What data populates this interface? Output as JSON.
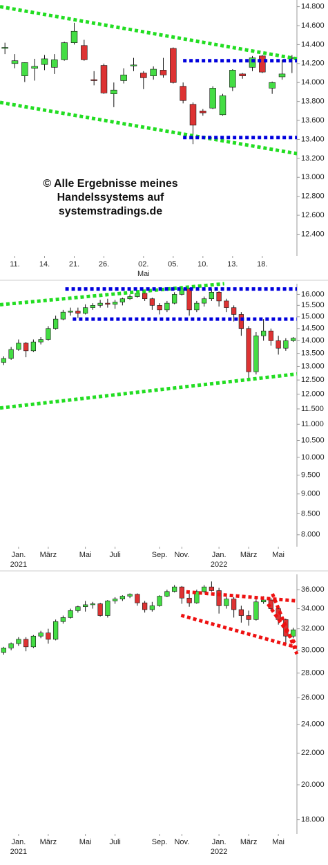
{
  "chart_data": [
    {
      "type": "candlestick",
      "categories": [
        null,
        "11.",
        null,
        null,
        "14.",
        null,
        null,
        "21.",
        null,
        null,
        "26.",
        null,
        null,
        null,
        "02.",
        null,
        null,
        "05.",
        null,
        null,
        "10.",
        null,
        null,
        "13.",
        null,
        null,
        "18.",
        null,
        null,
        null
      ],
      "sublabels": [
        null,
        null,
        null,
        null,
        null,
        null,
        null,
        null,
        null,
        null,
        null,
        null,
        null,
        null,
        "Mai",
        null,
        null,
        null,
        null,
        null,
        null,
        null,
        null,
        null,
        null,
        null,
        null,
        null,
        null,
        null
      ],
      "open": [
        14360,
        14200,
        14070,
        14150,
        14190,
        14160,
        14240,
        14420,
        14390,
        14030,
        14180,
        13880,
        14020,
        14175,
        14100,
        14070,
        14130,
        14360,
        13960,
        13770,
        13700,
        13730,
        13660,
        13950,
        14090,
        14160,
        14280,
        13940,
        14060,
        14255
      ],
      "high": [
        14420,
        14300,
        14213,
        14250,
        14290,
        14300,
        14430,
        14630,
        14450,
        14120,
        14200,
        14000,
        14150,
        14260,
        14120,
        14170,
        14260,
        14370,
        14000,
        13790,
        13720,
        13960,
        13880,
        14140,
        14100,
        14280,
        14290,
        14010,
        14240,
        14290
      ],
      "low": [
        14300,
        14150,
        14005,
        14020,
        14130,
        14090,
        14230,
        14400,
        14230,
        13970,
        13880,
        13740,
        13990,
        14120,
        13930,
        14030,
        14050,
        13990,
        13780,
        13350,
        13650,
        13720,
        13650,
        13910,
        14040,
        14120,
        14100,
        13880,
        14030,
        14100
      ],
      "close": [
        14370,
        14230,
        14210,
        14170,
        14250,
        14240,
        14420,
        14540,
        14240,
        14020,
        13890,
        13920,
        14080,
        14185,
        14050,
        14140,
        14080,
        14000,
        13810,
        13550,
        13680,
        13940,
        13860,
        14130,
        14070,
        14260,
        14110,
        14000,
        14090,
        14265
      ],
      "up_color": "#44dd44",
      "down_color": "#dd3333",
      "ylim": [
        12170,
        14870
      ],
      "log_scale": false,
      "yticks": [
        {
          "value": 14800,
          "label": "14.800"
        },
        {
          "value": 14600,
          "label": "14.600"
        },
        {
          "value": 14400,
          "label": "14.400"
        },
        {
          "value": 14200,
          "label": "14.200"
        },
        {
          "value": 14000,
          "label": "14.000"
        },
        {
          "value": 13800,
          "label": "13.800"
        },
        {
          "value": 13600,
          "label": "13.600"
        },
        {
          "value": 13400,
          "label": "13.400"
        },
        {
          "value": 13200,
          "label": "13.200"
        },
        {
          "value": 13000,
          "label": "13.000"
        },
        {
          "value": 12800,
          "label": "12.800"
        },
        {
          "value": 12600,
          "label": "12.600"
        },
        {
          "value": 12400,
          "label": "12.400"
        }
      ],
      "trendlines": [
        {
          "color": "#22dd22",
          "x": [
            -0.5,
            29.5
          ],
          "y": [
            14800,
            14250
          ]
        },
        {
          "color": "#22dd22",
          "x": [
            -0.5,
            29.5
          ],
          "y": [
            13790,
            13250
          ]
        },
        {
          "color": "#0000dd",
          "x": [
            18.0,
            29.5
          ],
          "y": [
            14230,
            14230
          ]
        },
        {
          "color": "#0000dd",
          "x": [
            18.0,
            29.5
          ],
          "y": [
            13420,
            13420
          ]
        }
      ],
      "watermark": [
        "© Alle Ergebnisse meines",
        "Handelssystems auf",
        "systemstradings.de"
      ]
    },
    {
      "type": "candlestick",
      "categories": [
        null,
        null,
        "Jan.",
        null,
        null,
        null,
        "März",
        null,
        null,
        null,
        null,
        "Mai",
        null,
        null,
        null,
        "Juli",
        null,
        null,
        null,
        null,
        null,
        "Sep.",
        null,
        null,
        "Nov.",
        null,
        null,
        null,
        null,
        "Jan.",
        null,
        null,
        null,
        "März",
        null,
        null,
        null,
        "Mai",
        null,
        null
      ],
      "sublabels": [
        null,
        null,
        "2021",
        null,
        null,
        null,
        null,
        null,
        null,
        null,
        null,
        null,
        null,
        null,
        null,
        null,
        null,
        null,
        null,
        null,
        null,
        null,
        null,
        null,
        null,
        null,
        null,
        null,
        null,
        "2022",
        null,
        null,
        null,
        null,
        null,
        null,
        null,
        null,
        null,
        null
      ],
      "open": [
        13150,
        13300,
        13650,
        13900,
        13600,
        13950,
        14050,
        14500,
        14900,
        15200,
        15250,
        15150,
        15400,
        15500,
        15600,
        15550,
        15650,
        15800,
        15900,
        16050,
        15800,
        15500,
        15300,
        15600,
        16000,
        16250,
        15300,
        15600,
        15800,
        16100,
        15700,
        15400,
        15100,
        14500,
        12800,
        14200,
        14400,
        14000,
        13700,
        14000
      ],
      "high": [
        13380,
        13750,
        14050,
        13950,
        14050,
        14150,
        14600,
        15050,
        15300,
        15400,
        15400,
        15550,
        15600,
        15750,
        15800,
        15750,
        15850,
        16000,
        16100,
        16100,
        15850,
        15600,
        15700,
        16100,
        16300,
        16300,
        15700,
        15900,
        16250,
        16150,
        15800,
        15500,
        15200,
        14600,
        14350,
        14900,
        14500,
        14200,
        14100,
        14150
      ],
      "low": [
        13050,
        13250,
        13600,
        13350,
        13550,
        13850,
        14000,
        14450,
        14850,
        15050,
        14950,
        15100,
        15300,
        15400,
        15400,
        15350,
        15500,
        15750,
        15850,
        15700,
        15300,
        15100,
        15200,
        15550,
        15950,
        15050,
        15200,
        15450,
        15700,
        15450,
        15200,
        14800,
        14200,
        12450,
        12700,
        14000,
        13800,
        13450,
        13600,
        13950
      ],
      "close": [
        13300,
        13650,
        13900,
        13600,
        13950,
        14050,
        14500,
        14900,
        15200,
        15250,
        15150,
        15400,
        15500,
        15600,
        15550,
        15650,
        15800,
        15900,
        16050,
        15800,
        15500,
        15300,
        15600,
        16000,
        16250,
        15300,
        15600,
        15800,
        16100,
        15700,
        15400,
        15100,
        14500,
        12800,
        14200,
        14400,
        14000,
        13700,
        14000,
        14100
      ],
      "up_color": "#44dd44",
      "down_color": "#dd3333",
      "ylim": [
        7730,
        16500
      ],
      "log_scale": true,
      "yticks": [
        {
          "value": 16000,
          "label": "16.000"
        },
        {
          "value": 15500,
          "label": "15.500"
        },
        {
          "value": 15000,
          "label": "15.000"
        },
        {
          "value": 14500,
          "label": "14.500"
        },
        {
          "value": 14000,
          "label": "14.000"
        },
        {
          "value": 13500,
          "label": "13.500"
        },
        {
          "value": 13000,
          "label": "13.000"
        },
        {
          "value": 12500,
          "label": "12.500"
        },
        {
          "value": 12000,
          "label": "12.000"
        },
        {
          "value": 11500,
          "label": "11.500"
        },
        {
          "value": 11000,
          "label": "11.000"
        },
        {
          "value": 10500,
          "label": "10.500"
        },
        {
          "value": 10000,
          "label": "10.000"
        },
        {
          "value": 9500,
          "label": "9.500"
        },
        {
          "value": 9000,
          "label": "9.000"
        },
        {
          "value": 8500,
          "label": "8.500"
        },
        {
          "value": 8000,
          "label": "8.000"
        }
      ],
      "trendlines": [
        {
          "color": "#22dd22",
          "x": [
            -0.5,
            29.7
          ],
          "y": [
            15530,
            16500
          ]
        },
        {
          "color": "#22dd22",
          "x": [
            -0.5,
            39.5
          ],
          "y": [
            11530,
            12720
          ]
        },
        {
          "color": "#0000dd",
          "x": [
            8.3,
            39.5
          ],
          "y": [
            16250,
            16250
          ]
        },
        {
          "color": "#0000dd",
          "x": [
            9.3,
            39.5
          ],
          "y": [
            14900,
            14900
          ]
        }
      ]
    },
    {
      "type": "candlestick",
      "categories": [
        null,
        null,
        "Jan.",
        null,
        null,
        null,
        "März",
        null,
        null,
        null,
        null,
        "Mai",
        null,
        null,
        null,
        "Juli",
        null,
        null,
        null,
        null,
        null,
        "Sep.",
        null,
        null,
        "Nov.",
        null,
        null,
        null,
        null,
        "Jan.",
        null,
        null,
        null,
        "März",
        null,
        null,
        null,
        "Mai",
        null,
        null
      ],
      "sublabels": [
        null,
        null,
        "2021",
        null,
        null,
        null,
        null,
        null,
        null,
        null,
        null,
        null,
        null,
        null,
        null,
        null,
        null,
        null,
        null,
        null,
        null,
        null,
        null,
        null,
        null,
        null,
        null,
        null,
        null,
        "2022",
        null,
        null,
        null,
        null,
        null,
        null,
        null,
        null,
        null,
        null
      ],
      "open": [
        29800,
        30200,
        30600,
        31000,
        30300,
        31300,
        31600,
        31000,
        32700,
        33100,
        33800,
        34200,
        34400,
        34500,
        33300,
        34800,
        35000,
        35300,
        35500,
        34600,
        33900,
        34300,
        35300,
        35800,
        36300,
        35100,
        34600,
        35800,
        36300,
        35900,
        34300,
        35000,
        33900,
        33300,
        32900,
        34700,
        34900,
        34000,
        32900,
        31300
      ],
      "high": [
        30300,
        30700,
        31200,
        31200,
        31400,
        31800,
        32000,
        32900,
        33300,
        34000,
        34300,
        34800,
        34700,
        34600,
        34900,
        35200,
        35400,
        35600,
        35600,
        34800,
        34700,
        35400,
        36000,
        36500,
        36400,
        35900,
        36000,
        36500,
        36900,
        36200,
        35300,
        35200,
        34300,
        33800,
        35000,
        35300,
        35100,
        34200,
        33000,
        32100
      ],
      "low": [
        29600,
        30000,
        30400,
        29900,
        30200,
        31100,
        30600,
        30900,
        32500,
        33000,
        33600,
        33700,
        34000,
        33200,
        33100,
        34500,
        34800,
        35100,
        34300,
        33600,
        33700,
        34200,
        35200,
        35700,
        34500,
        34200,
        34500,
        35600,
        35800,
        33500,
        34000,
        33100,
        32600,
        32300,
        32800,
        34500,
        33800,
        32400,
        30600,
        31100
      ],
      "close": [
        30200,
        30600,
        31000,
        30300,
        31300,
        31600,
        31000,
        32700,
        33100,
        33800,
        34200,
        34400,
        34500,
        33300,
        34800,
        35000,
        35300,
        35500,
        34600,
        33900,
        34300,
        35300,
        35800,
        36300,
        35100,
        34600,
        35800,
        36300,
        35900,
        34300,
        35000,
        33900,
        33300,
        32900,
        34700,
        34900,
        34000,
        32900,
        31300,
        31900
      ],
      "up_color": "#44dd44",
      "down_color": "#dd3333",
      "ylim": [
        17250,
        37700
      ],
      "log_scale": true,
      "yticks": [
        {
          "value": 36000,
          "label": "36.000"
        },
        {
          "value": 34000,
          "label": "34.000"
        },
        {
          "value": 32000,
          "label": "32.000"
        },
        {
          "value": 30000,
          "label": "30.000"
        },
        {
          "value": 28000,
          "label": "28.000"
        },
        {
          "value": 26000,
          "label": "26.000"
        },
        {
          "value": 24000,
          "label": "24.000"
        },
        {
          "value": 22000,
          "label": "22.000"
        },
        {
          "value": 20000,
          "label": "20.000"
        },
        {
          "value": 18000,
          "label": "18.000"
        }
      ],
      "trendlines": [
        {
          "color": "#ee1111",
          "x": [
            24.6,
            39.5
          ],
          "y": [
            35770,
            34800
          ]
        },
        {
          "color": "#ee1111",
          "x": [
            23.9,
            39.5
          ],
          "y": [
            33320,
            30250
          ]
        },
        {
          "color": "#ee1111",
          "x": [
            36.2,
            39.5
          ],
          "y": [
            35560,
            29650
          ]
        },
        {
          "color": "#ee1111",
          "x": [
            35.6,
            39.3
          ],
          "y": [
            34480,
            30570
          ]
        }
      ]
    }
  ]
}
